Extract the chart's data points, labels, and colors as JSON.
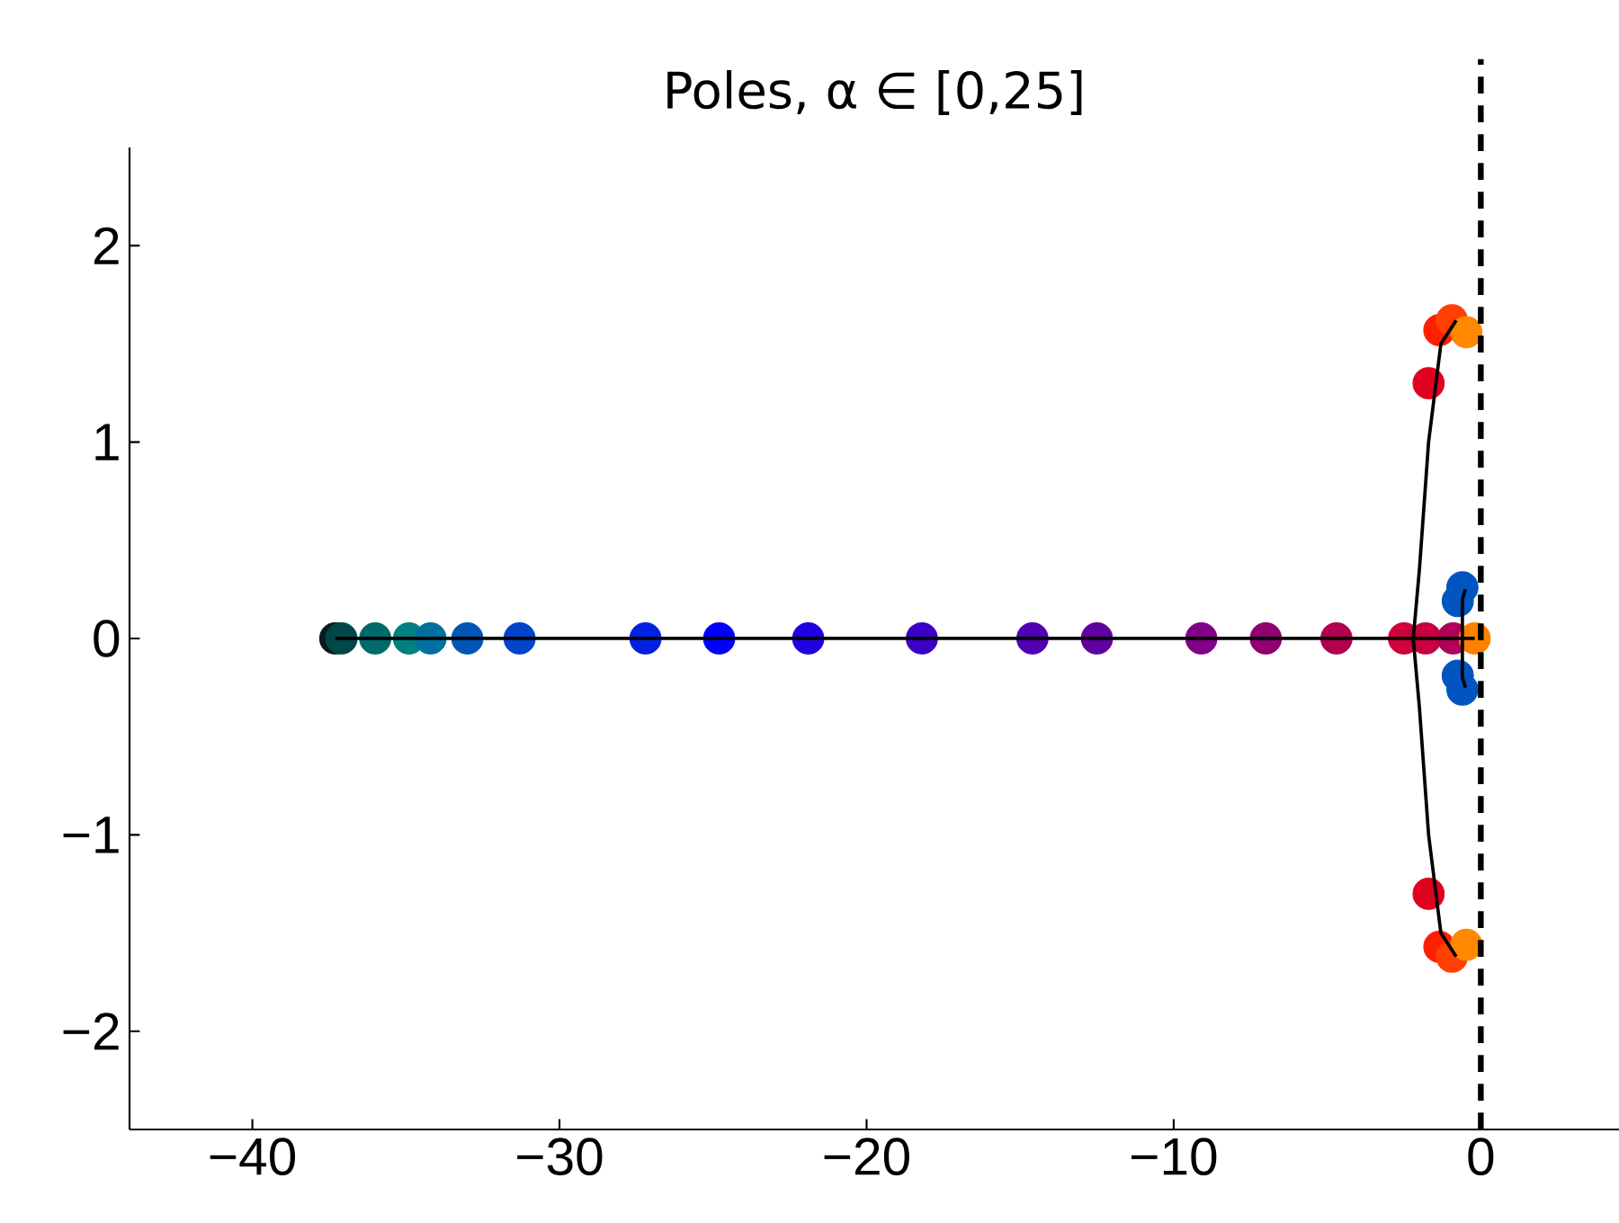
{
  "chart_data": {
    "type": "scatter",
    "title": "Poles, α ∈ [0,25]",
    "xlim": [
      -44,
      4.5
    ],
    "ylim": [
      -2.5,
      2.5
    ],
    "xticks": [
      {
        "value": -40,
        "label": "−40"
      },
      {
        "value": -30,
        "label": "−30"
      },
      {
        "value": -20,
        "label": "−20"
      },
      {
        "value": -10,
        "label": "−10"
      },
      0
    ],
    "yticks": [
      {
        "value": -2,
        "label": "−2"
      },
      {
        "value": -1,
        "label": "−1"
      },
      0,
      1,
      2
    ],
    "grid": false,
    "ref_lines": [
      {
        "axis": "x",
        "value": 0,
        "color": "#000000",
        "line_style": "dashed"
      }
    ],
    "series": [
      {
        "type": "line",
        "marker": "none",
        "color": "#000000",
        "x": [
          -37.3,
          -0.2
        ],
        "values": [
          0,
          0
        ]
      },
      {
        "type": "line",
        "marker": "none",
        "color": "#000000",
        "x": [
          -0.8,
          -1.3,
          -1.7,
          -2.0,
          -2.2,
          -2.0,
          -1.7,
          -1.3,
          -0.8
        ],
        "values": [
          1.62,
          1.5,
          1.0,
          0.35,
          0,
          -0.35,
          -1.0,
          -1.5,
          -1.62
        ]
      },
      {
        "type": "line",
        "marker": "none",
        "color": "#000000",
        "x": [
          -0.5,
          -0.6,
          -0.6,
          -0.5
        ],
        "values": [
          0.25,
          0.2,
          -0.2,
          -0.25
        ]
      },
      {
        "marker": "circle",
        "x": [
          -37.3,
          -37.1,
          -36.0,
          -34.9,
          -34.2,
          -33.0,
          -31.3,
          -27.2,
          -24.8,
          -21.9,
          -18.2,
          -14.6,
          -12.5,
          -9.1,
          -7.0,
          -4.7,
          -2.5,
          -1.8,
          -0.9,
          -0.75,
          -0.6,
          -0.75,
          -0.6,
          -1.7,
          -1.35,
          -0.94,
          -1.7,
          -1.35,
          -0.94,
          -0.47,
          -0.47,
          -0.2
        ],
        "values": [
          0,
          0,
          0,
          0,
          0,
          0,
          0,
          0,
          0,
          0,
          0,
          0,
          0,
          0,
          0,
          0,
          0,
          0,
          0,
          0.19,
          0.26,
          -0.19,
          -0.26,
          1.3,
          1.57,
          1.62,
          -1.3,
          -1.57,
          -1.62,
          1.56,
          -1.56,
          0
        ],
        "colors": [
          "#0a1a1a",
          "#004848",
          "#006a6a",
          "#008080",
          "#0070a0",
          "#0055b5",
          "#0044cc",
          "#0022e0",
          "#0000ff",
          "#2000e0",
          "#3a00c8",
          "#5000b0",
          "#6000a0",
          "#800088",
          "#900070",
          "#b00050",
          "#d00038",
          "#c80040",
          "#b0005a",
          "#0055c0",
          "#0055c0",
          "#0055c0",
          "#0055c0",
          "#e00020",
          "#ff2000",
          "#ff4000",
          "#e00020",
          "#ff2000",
          "#ff4000",
          "#ff8800",
          "#ff8800",
          "#ff8000"
        ]
      }
    ]
  }
}
